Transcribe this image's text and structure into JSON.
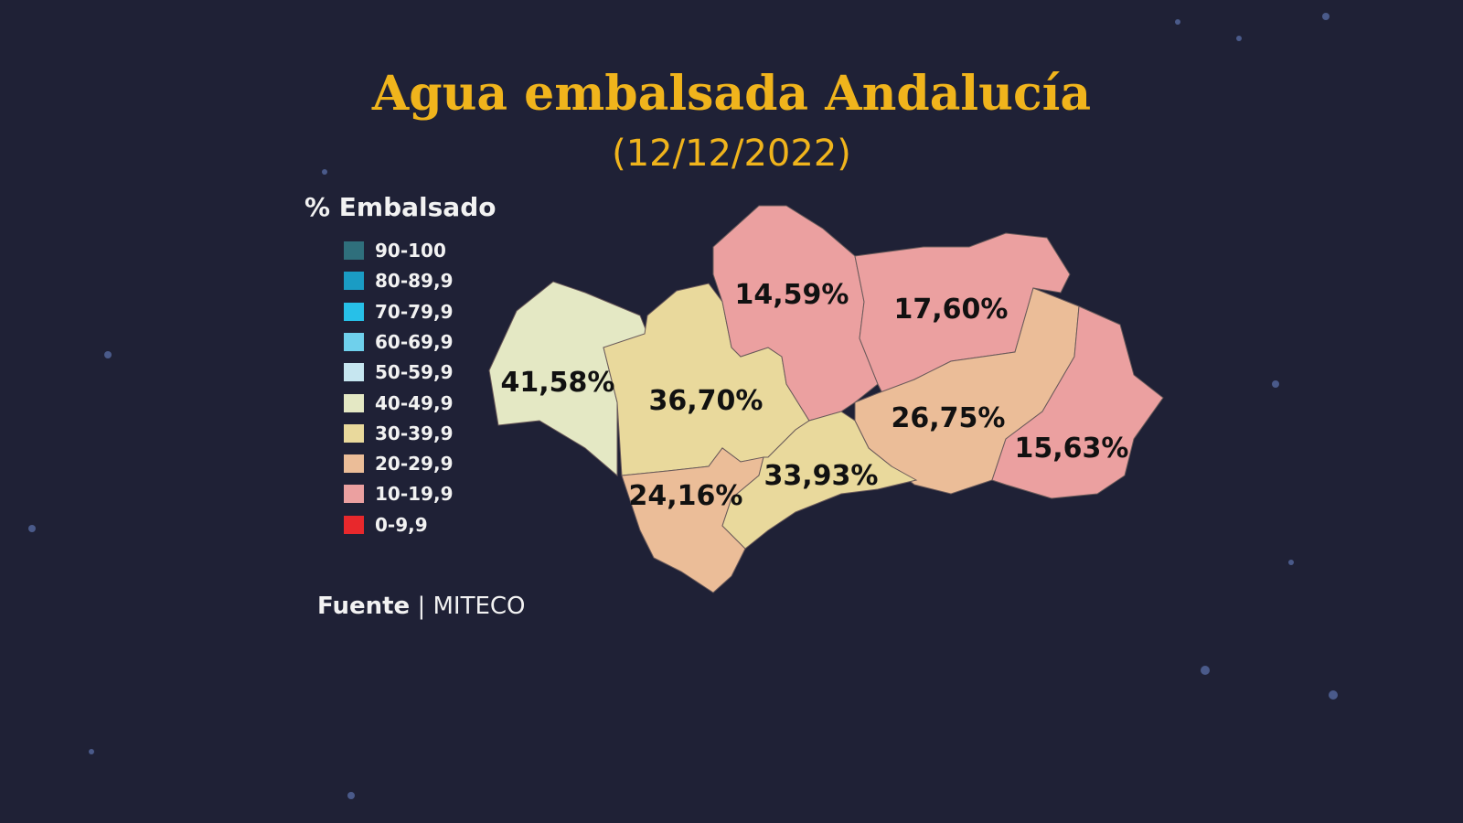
{
  "title": "Agua embalsada Andalucía",
  "date": "(12/12/2022)",
  "legend": {
    "title": "% Embalsado",
    "items": [
      {
        "label": "90-100",
        "color": "#2f6f7c"
      },
      {
        "label": "80-89,9",
        "color": "#1a9cc4"
      },
      {
        "label": "70-79,9",
        "color": "#27c0e8"
      },
      {
        "label": "60-69,9",
        "color": "#6fd0ec"
      },
      {
        "label": "50-59,9",
        "color": "#c6e6f0"
      },
      {
        "label": "40-49,9",
        "color": "#e4e8c4"
      },
      {
        "label": "30-39,9",
        "color": "#e9d99c"
      },
      {
        "label": "20-29,9",
        "color": "#ebbd98"
      },
      {
        "label": "10-19,9",
        "color": "#eba0a0"
      },
      {
        "label": "0-9,9",
        "color": "#e8282c"
      }
    ]
  },
  "source": {
    "label": "Fuente",
    "value": "MITECO"
  },
  "regions": [
    {
      "value": "41,58%",
      "pct": 41.58
    },
    {
      "value": "36,70%",
      "pct": 36.7
    },
    {
      "value": "14,59%",
      "pct": 14.59
    },
    {
      "value": "17,60%",
      "pct": 17.6
    },
    {
      "value": "26,75%",
      "pct": 26.75
    },
    {
      "value": "15,63%",
      "pct": 15.63
    },
    {
      "value": "24,16%",
      "pct": 24.16
    },
    {
      "value": "33,93%",
      "pct": 33.93
    }
  ]
}
